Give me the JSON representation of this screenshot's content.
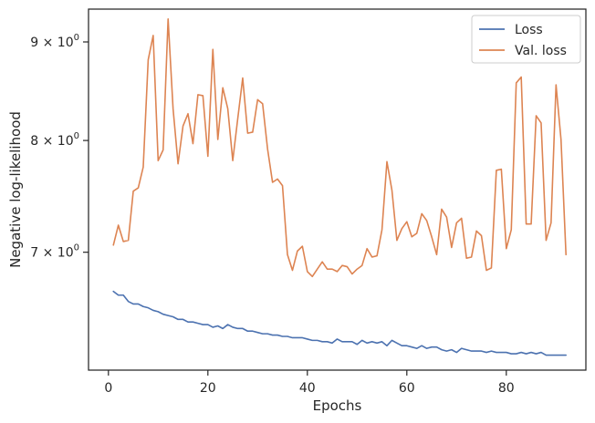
{
  "chart_data": {
    "type": "line",
    "xlabel": "Epochs",
    "ylabel": "Negative log-likelihood",
    "yscale": "log",
    "xlim": [
      -4,
      96
    ],
    "ylim": [
      6.08,
      9.36
    ],
    "x_ticks": [
      {
        "value": 0,
        "label": "0"
      },
      {
        "value": 20,
        "label": "20"
      },
      {
        "value": 40,
        "label": "40"
      },
      {
        "value": 60,
        "label": "60"
      },
      {
        "value": 80,
        "label": "80"
      }
    ],
    "y_ticks": [
      {
        "value": 7,
        "label_base": "7 × 10",
        "label_exp": "0"
      },
      {
        "value": 8,
        "label_base": "8 × 10",
        "label_exp": "0"
      },
      {
        "value": 9,
        "label_base": "9 × 10",
        "label_exp": "0"
      }
    ],
    "grid": false,
    "legend_position": "top-right",
    "series": [
      {
        "name": "Loss",
        "color": "#4c72b0",
        "x": [
          1,
          2,
          3,
          4,
          5,
          6,
          7,
          8,
          9,
          10,
          11,
          12,
          13,
          14,
          15,
          16,
          17,
          18,
          19,
          20,
          21,
          22,
          23,
          24,
          25,
          26,
          27,
          28,
          29,
          30,
          31,
          32,
          33,
          34,
          35,
          36,
          37,
          38,
          39,
          40,
          41,
          42,
          43,
          44,
          45,
          46,
          47,
          48,
          49,
          50,
          51,
          52,
          53,
          54,
          55,
          56,
          57,
          58,
          59,
          60,
          61,
          62,
          63,
          64,
          65,
          66,
          67,
          68,
          69,
          70,
          71,
          72,
          73,
          74,
          75,
          76,
          77,
          78,
          79,
          80,
          81,
          82,
          83,
          84,
          85,
          86,
          87,
          88,
          89,
          90,
          91,
          92
        ],
        "values": [
          6.68,
          6.65,
          6.65,
          6.6,
          6.58,
          6.58,
          6.56,
          6.55,
          6.53,
          6.52,
          6.5,
          6.49,
          6.48,
          6.46,
          6.46,
          6.44,
          6.44,
          6.43,
          6.42,
          6.42,
          6.4,
          6.41,
          6.39,
          6.42,
          6.4,
          6.39,
          6.39,
          6.37,
          6.37,
          6.36,
          6.35,
          6.35,
          6.34,
          6.34,
          6.33,
          6.33,
          6.32,
          6.32,
          6.32,
          6.31,
          6.3,
          6.3,
          6.29,
          6.29,
          6.28,
          6.31,
          6.29,
          6.29,
          6.29,
          6.27,
          6.3,
          6.28,
          6.29,
          6.28,
          6.29,
          6.26,
          6.3,
          6.28,
          6.26,
          6.26,
          6.25,
          6.24,
          6.26,
          6.24,
          6.25,
          6.25,
          6.23,
          6.22,
          6.23,
          6.21,
          6.24,
          6.23,
          6.22,
          6.22,
          6.22,
          6.21,
          6.22,
          6.21,
          6.21,
          6.21,
          6.2,
          6.2,
          6.21,
          6.2,
          6.21,
          6.2,
          6.21,
          6.19,
          6.19,
          6.19,
          6.19,
          6.19
        ]
      },
      {
        "name": "Val. loss",
        "color": "#dd8452",
        "x": [
          1,
          2,
          3,
          4,
          5,
          6,
          7,
          8,
          9,
          10,
          11,
          12,
          13,
          14,
          15,
          16,
          17,
          18,
          19,
          20,
          21,
          22,
          23,
          24,
          25,
          26,
          27,
          28,
          29,
          30,
          31,
          32,
          33,
          34,
          35,
          36,
          37,
          38,
          39,
          40,
          41,
          42,
          43,
          44,
          45,
          46,
          47,
          48,
          49,
          50,
          51,
          52,
          53,
          54,
          55,
          56,
          57,
          58,
          59,
          60,
          61,
          62,
          63,
          64,
          65,
          66,
          67,
          68,
          69,
          70,
          71,
          72,
          73,
          74,
          75,
          76,
          77,
          78,
          79,
          80,
          81,
          82,
          83,
          84,
          85,
          86,
          87,
          88,
          89,
          90,
          91,
          92
        ],
        "values": [
          7.06,
          7.23,
          7.09,
          7.1,
          7.53,
          7.56,
          7.75,
          8.81,
          9.07,
          7.81,
          7.91,
          9.25,
          8.31,
          7.78,
          8.14,
          8.26,
          7.97,
          8.45,
          8.44,
          7.85,
          8.92,
          8.01,
          8.52,
          8.31,
          7.81,
          8.21,
          8.62,
          8.07,
          8.08,
          8.4,
          8.36,
          7.92,
          7.61,
          7.64,
          7.58,
          6.98,
          6.85,
          7.01,
          7.05,
          6.84,
          6.8,
          6.86,
          6.92,
          6.86,
          6.86,
          6.84,
          6.89,
          6.88,
          6.82,
          6.86,
          6.89,
          7.03,
          6.96,
          6.97,
          7.19,
          7.8,
          7.54,
          7.1,
          7.2,
          7.26,
          7.13,
          7.16,
          7.33,
          7.27,
          7.13,
          6.98,
          7.37,
          7.3,
          7.04,
          7.25,
          7.29,
          6.95,
          6.96,
          7.18,
          7.14,
          6.85,
          6.87,
          7.72,
          7.73,
          7.03,
          7.19,
          8.57,
          8.63,
          7.24,
          7.24,
          8.24,
          8.17,
          7.1,
          7.25,
          8.55,
          8.01,
          6.98
        ]
      }
    ]
  }
}
